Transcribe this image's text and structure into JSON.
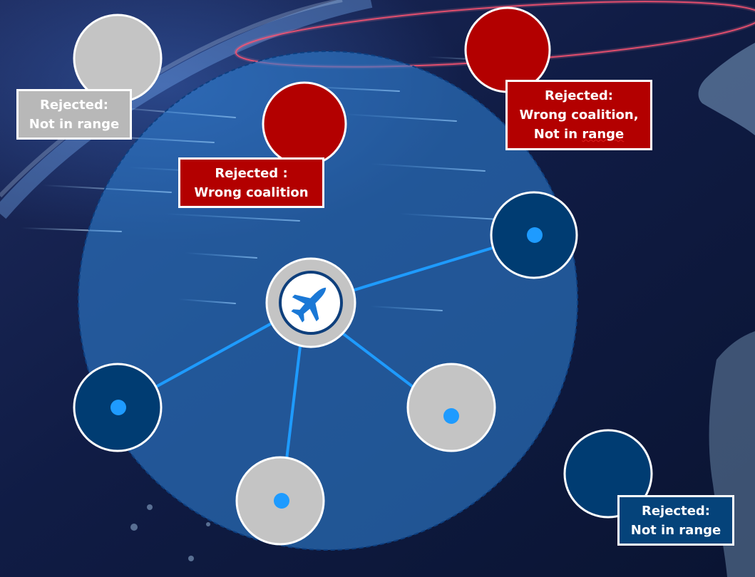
{
  "labels": {
    "top_left": {
      "line1": "Rejected:",
      "line2": "Not in range"
    },
    "center_red": {
      "line1": "Rejected :",
      "line2": "Wrong coalition"
    },
    "top_right": {
      "line1": "Rejected:",
      "line2": "Wrong coalition,",
      "line3_prefix": "Not in ",
      "line3_word": "range"
    },
    "bottom_right": {
      "line1": "Rejected:",
      "line2": "Not in range"
    }
  },
  "central_unit": {
    "icon": "fighter-jet-icon"
  },
  "colors": {
    "range_circle": "#2f7fd0",
    "navy_node": "#003c72",
    "gray_node": "#c4c4c4",
    "red_node": "#b30000",
    "link": "#1e9bff"
  }
}
